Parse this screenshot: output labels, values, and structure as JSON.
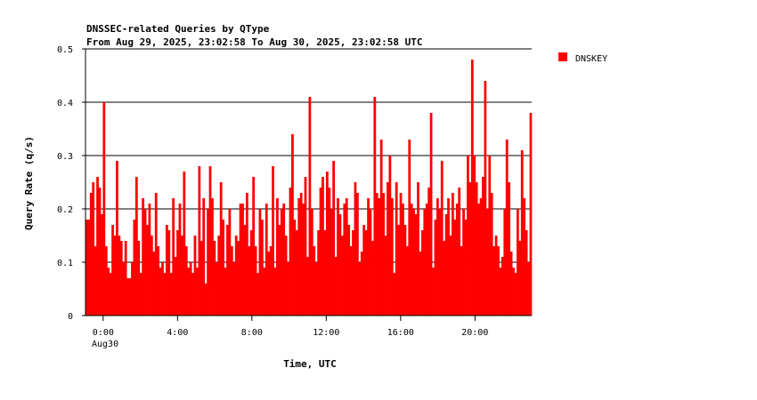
{
  "chart_data": {
    "type": "bar",
    "title": "DNSSEC-related Queries by QType",
    "subtitle": "From Aug 29, 2025, 23:02:58 To Aug 30, 2025, 23:02:58 UTC",
    "xlabel": "Time, UTC",
    "ylabel": "Query Rate (q/s)",
    "ylim": [
      0,
      0.5
    ],
    "yticks": [
      "0",
      "0.1",
      "0.2",
      "0.3",
      "0.4",
      "0.5"
    ],
    "xticks": [
      {
        "label": "0:00",
        "hours": 0.95
      },
      {
        "label": "4:00",
        "hours": 4.95
      },
      {
        "label": "8:00",
        "hours": 8.95
      },
      {
        "label": "12:00",
        "hours": 12.95
      },
      {
        "label": "16:00",
        "hours": 16.95
      },
      {
        "label": "20:00",
        "hours": 20.95
      }
    ],
    "date_label": "Aug30",
    "grid": true,
    "legend_position": "right",
    "series": [
      {
        "name": "DNSKEY",
        "color": "#ff0000",
        "values": [
          0.18,
          0.18,
          0.23,
          0.25,
          0.13,
          0.26,
          0.24,
          0.19,
          0.4,
          0.13,
          0.09,
          0.08,
          0.17,
          0.15,
          0.29,
          0.15,
          0.14,
          0.1,
          0.14,
          0.07,
          0.07,
          0.1,
          0.18,
          0.26,
          0.14,
          0.08,
          0.22,
          0.2,
          0.17,
          0.21,
          0.15,
          0.12,
          0.23,
          0.13,
          0.09,
          0.1,
          0.08,
          0.17,
          0.16,
          0.08,
          0.22,
          0.11,
          0.16,
          0.21,
          0.15,
          0.27,
          0.13,
          0.09,
          0.1,
          0.08,
          0.15,
          0.09,
          0.28,
          0.14,
          0.22,
          0.06,
          0.2,
          0.28,
          0.22,
          0.14,
          0.1,
          0.15,
          0.25,
          0.18,
          0.09,
          0.17,
          0.2,
          0.13,
          0.1,
          0.15,
          0.14,
          0.21,
          0.21,
          0.17,
          0.23,
          0.13,
          0.16,
          0.26,
          0.13,
          0.08,
          0.2,
          0.18,
          0.09,
          0.21,
          0.12,
          0.13,
          0.28,
          0.09,
          0.22,
          0.17,
          0.2,
          0.21,
          0.15,
          0.1,
          0.24,
          0.34,
          0.18,
          0.16,
          0.22,
          0.23,
          0.21,
          0.26,
          0.11,
          0.41,
          0.2,
          0.13,
          0.1,
          0.16,
          0.24,
          0.26,
          0.16,
          0.27,
          0.24,
          0.2,
          0.29,
          0.11,
          0.22,
          0.19,
          0.15,
          0.21,
          0.22,
          0.17,
          0.13,
          0.16,
          0.25,
          0.23,
          0.1,
          0.12,
          0.17,
          0.16,
          0.22,
          0.2,
          0.14,
          0.41,
          0.23,
          0.22,
          0.33,
          0.23,
          0.15,
          0.25,
          0.3,
          0.22,
          0.08,
          0.25,
          0.17,
          0.23,
          0.21,
          0.17,
          0.13,
          0.33,
          0.21,
          0.2,
          0.19,
          0.25,
          0.12,
          0.16,
          0.2,
          0.21,
          0.24,
          0.38,
          0.09,
          0.18,
          0.22,
          0.2,
          0.29,
          0.14,
          0.19,
          0.22,
          0.15,
          0.23,
          0.18,
          0.21,
          0.24,
          0.13,
          0.2,
          0.18,
          0.3,
          0.25,
          0.48,
          0.3,
          0.25,
          0.21,
          0.22,
          0.26,
          0.44,
          0.2,
          0.3,
          0.23,
          0.13,
          0.15,
          0.13,
          0.09,
          0.11,
          0.2,
          0.33,
          0.25,
          0.12,
          0.09,
          0.08,
          0.2,
          0.14,
          0.31,
          0.22,
          0.16,
          0.1,
          0.38
        ]
      }
    ]
  }
}
